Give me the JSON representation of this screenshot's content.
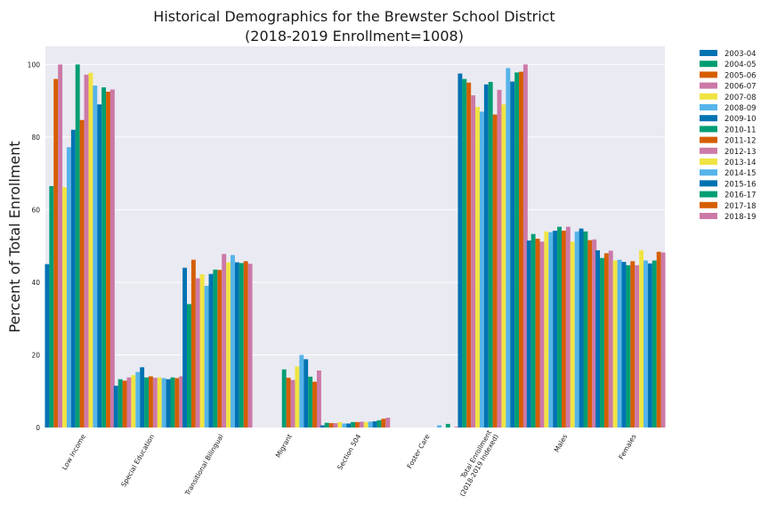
{
  "chart_data": {
    "type": "bar",
    "title_line1": "Historical Demographics for the Brewster School District",
    "title_line2": "(2018-2019 Enrollment=1008)",
    "xlabel": "",
    "ylabel": "Percent of Total Enrollment",
    "ylim": [
      0,
      105
    ],
    "yticks": [
      "0",
      "20",
      "40",
      "60",
      "80",
      "100"
    ],
    "grid": true,
    "legend_position": "outside-right",
    "categories": [
      [
        "Low Income"
      ],
      [
        "Special Education"
      ],
      [
        "Transitional Bilingual"
      ],
      [
        "Migrant"
      ],
      [
        "Section 504"
      ],
      [
        "Foster Care"
      ],
      [
        "Total Enrollment",
        "(2018-2019 Indexed)"
      ],
      [
        "Males"
      ],
      [
        "Females"
      ]
    ],
    "series": [
      {
        "name": "2003-04",
        "color": "#0072B2",
        "values": [
          45,
          11.5,
          44,
          null,
          0.6,
          null,
          97.5,
          51.5,
          48.8
        ]
      },
      {
        "name": "2004-05",
        "color": "#009E73",
        "values": [
          66.5,
          13.3,
          34,
          null,
          1.3,
          null,
          96,
          53.3,
          46.7
        ]
      },
      {
        "name": "2005-06",
        "color": "#D55E00",
        "values": [
          96,
          12.9,
          46.2,
          null,
          1.2,
          null,
          95,
          52,
          48
        ]
      },
      {
        "name": "2006-07",
        "color": "#CC79A7",
        "values": [
          100,
          13.8,
          41.1,
          null,
          1.2,
          null,
          91.5,
          51.2,
          48.7
        ]
      },
      {
        "name": "2007-08",
        "color": "#F0E442",
        "values": [
          66.2,
          14.4,
          42.2,
          null,
          1.5,
          null,
          88.3,
          54,
          46
        ]
      },
      {
        "name": "2008-09",
        "color": "#56B4E9",
        "values": [
          77.2,
          15.3,
          39,
          null,
          1.1,
          null,
          87,
          53.8,
          46.2
        ]
      },
      {
        "name": "2009-10",
        "color": "#0072B2",
        "values": [
          82,
          16.6,
          42.3,
          null,
          1.1,
          null,
          94.5,
          54.2,
          45.6
        ]
      },
      {
        "name": "2010-11",
        "color": "#009E73",
        "values": [
          100,
          13.8,
          43.5,
          16,
          1.5,
          null,
          95.2,
          55.3,
          44.7
        ]
      },
      {
        "name": "2011-12",
        "color": "#D55E00",
        "values": [
          84.7,
          14.1,
          43.4,
          13.7,
          1.5,
          null,
          86.2,
          54.2,
          45.8
        ]
      },
      {
        "name": "2012-13",
        "color": "#CC79A7",
        "values": [
          97.2,
          13.7,
          47.8,
          13.1,
          1.6,
          null,
          93,
          55.3,
          44.7
        ]
      },
      {
        "name": "2013-14",
        "color": "#F0E442",
        "values": [
          97.7,
          13.8,
          45.5,
          16.8,
          1.5,
          null,
          89,
          51.2,
          48.8
        ]
      },
      {
        "name": "2014-15",
        "color": "#56B4E9",
        "values": [
          94.2,
          13.6,
          47.5,
          20,
          1.6,
          0.6,
          99,
          54,
          46
        ]
      },
      {
        "name": "2015-16",
        "color": "#0072B2",
        "values": [
          89,
          13.3,
          45.5,
          18.8,
          1.7,
          null,
          95.3,
          54.8,
          45.2
        ]
      },
      {
        "name": "2016-17",
        "color": "#009E73",
        "values": [
          93.7,
          13.8,
          45.3,
          14,
          2,
          1,
          97.8,
          54,
          46
        ]
      },
      {
        "name": "2017-18",
        "color": "#D55E00",
        "values": [
          92.5,
          13.6,
          45.8,
          12.6,
          2.4,
          null,
          98,
          51.6,
          48.4
        ]
      },
      {
        "name": "2018-19",
        "color": "#CC79A7",
        "values": [
          93.1,
          14.1,
          45.1,
          15.7,
          2.7,
          0.2,
          100,
          51.8,
          48.2
        ]
      }
    ]
  }
}
